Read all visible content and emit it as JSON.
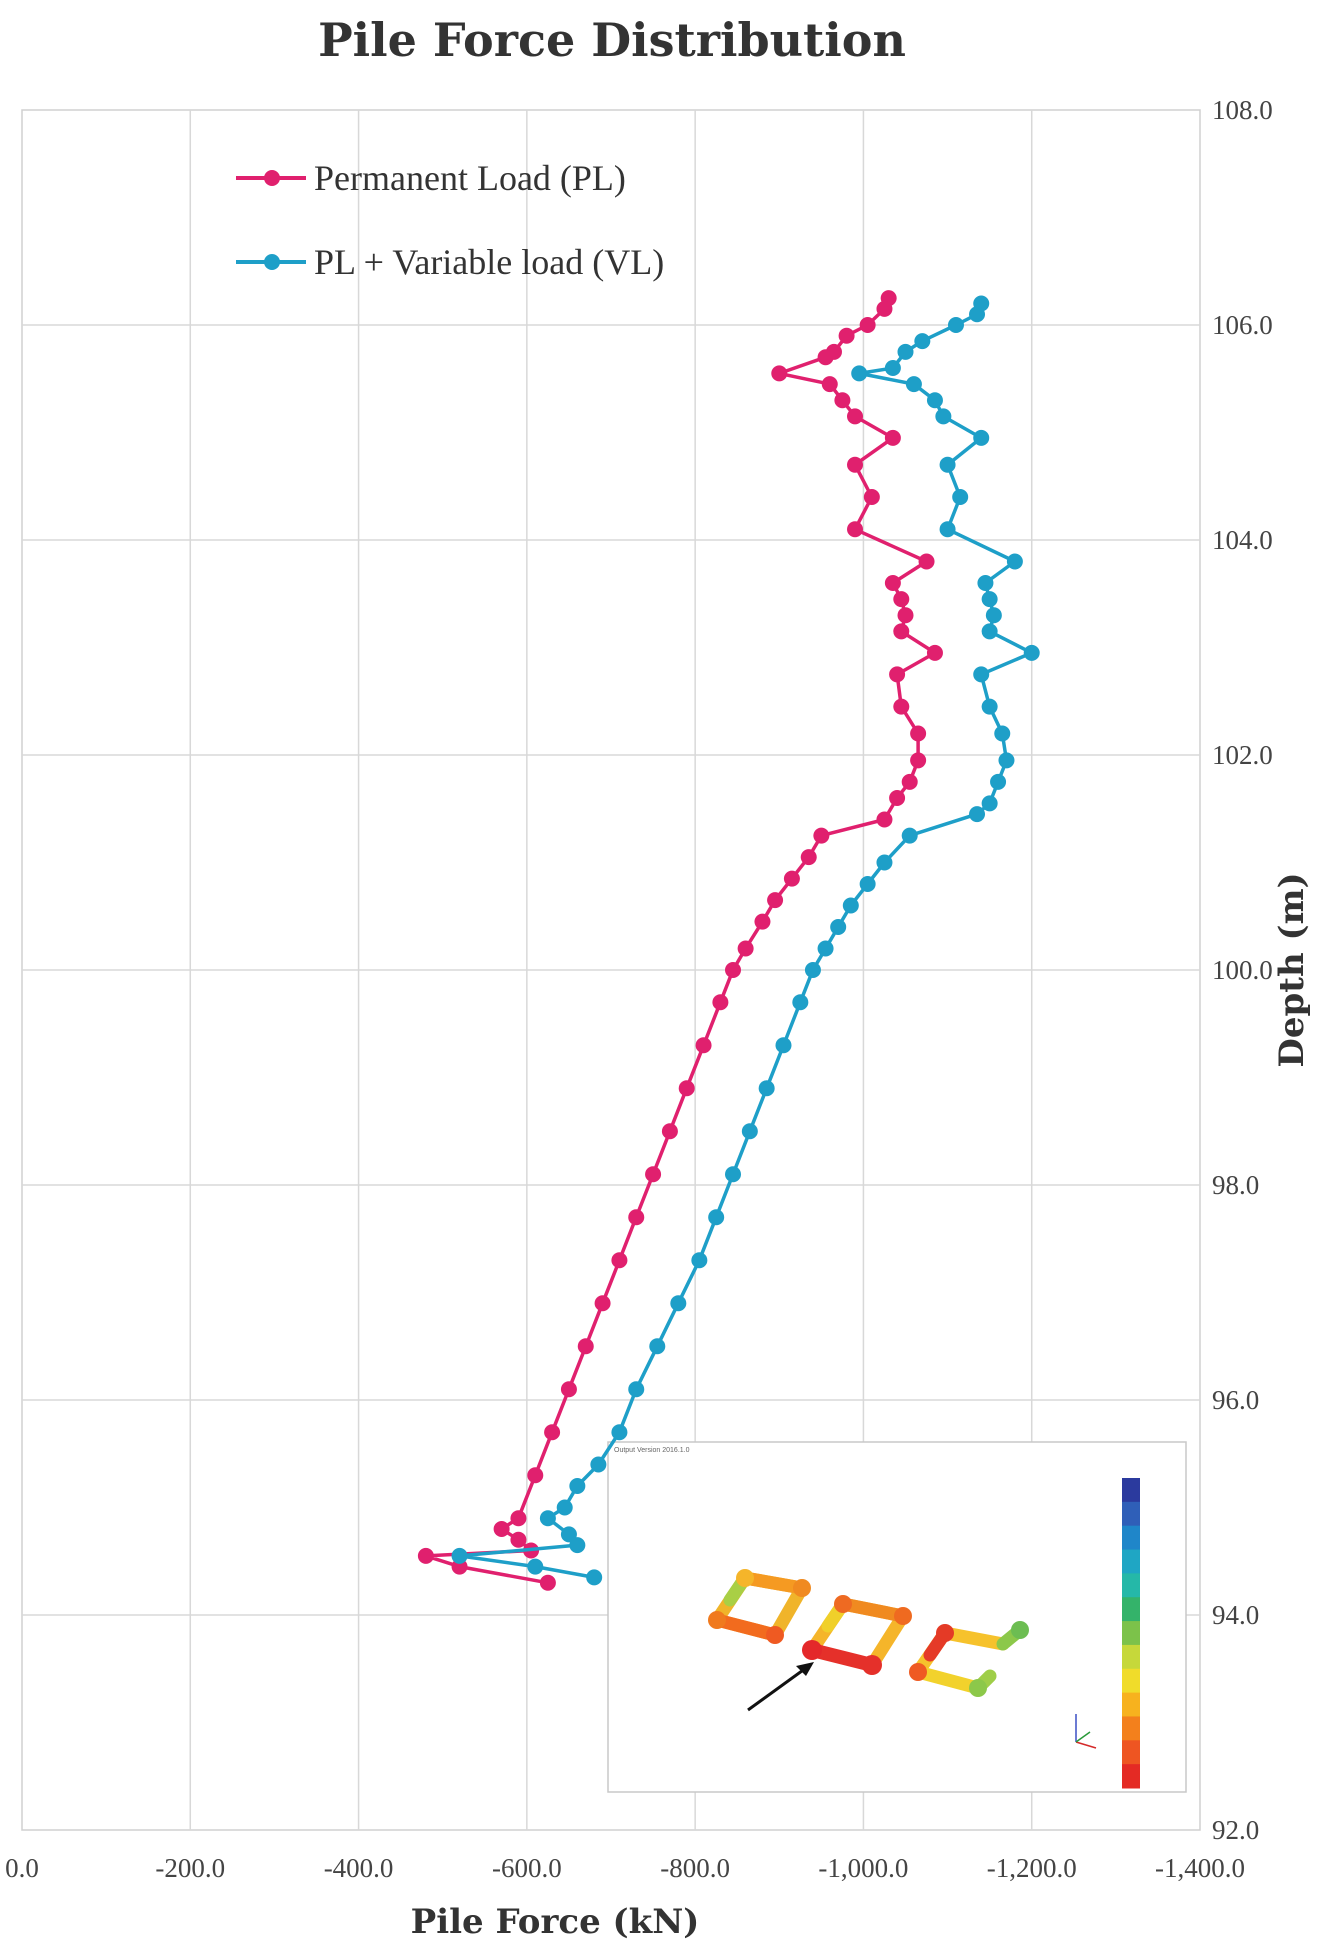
{
  "chart_data": {
    "type": "line",
    "title": "Pile Force Distribution",
    "xlabel": "Pile Force (kN)",
    "ylabel": "Depth (m)",
    "xlim": [
      0,
      -1400
    ],
    "ylim": [
      92,
      108
    ],
    "x_ticks": [
      "0.0",
      "-200.0",
      "-400.0",
      "-600.0",
      "-800.0",
      "-1,000.0",
      "-1,200.0",
      "-1,400.0"
    ],
    "y_ticks": [
      "92.0",
      "94.0",
      "96.0",
      "98.0",
      "100.0",
      "102.0",
      "104.0",
      "106.0",
      "108.0"
    ],
    "grid": true,
    "legend_position": "top-left",
    "series": [
      {
        "name": "Permanent Load (PL)",
        "color": "#e0206e",
        "points": [
          [
            -1030,
            106.25
          ],
          [
            -1025,
            106.15
          ],
          [
            -1005,
            106.0
          ],
          [
            -980,
            105.9
          ],
          [
            -965,
            105.75
          ],
          [
            -955,
            105.7
          ],
          [
            -900,
            105.55
          ],
          [
            -960,
            105.45
          ],
          [
            -975,
            105.3
          ],
          [
            -990,
            105.15
          ],
          [
            -1035,
            104.95
          ],
          [
            -990,
            104.7
          ],
          [
            -1010,
            104.4
          ],
          [
            -990,
            104.1
          ],
          [
            -1075,
            103.8
          ],
          [
            -1035,
            103.6
          ],
          [
            -1045,
            103.45
          ],
          [
            -1050,
            103.3
          ],
          [
            -1045,
            103.15
          ],
          [
            -1085,
            102.95
          ],
          [
            -1040,
            102.75
          ],
          [
            -1045,
            102.45
          ],
          [
            -1065,
            102.2
          ],
          [
            -1065,
            101.95
          ],
          [
            -1055,
            101.75
          ],
          [
            -1040,
            101.6
          ],
          [
            -1025,
            101.4
          ],
          [
            -950,
            101.25
          ],
          [
            -935,
            101.05
          ],
          [
            -915,
            100.85
          ],
          [
            -895,
            100.65
          ],
          [
            -880,
            100.45
          ],
          [
            -860,
            100.2
          ],
          [
            -845,
            100.0
          ],
          [
            -830,
            99.7
          ],
          [
            -810,
            99.3
          ],
          [
            -790,
            98.9
          ],
          [
            -770,
            98.5
          ],
          [
            -750,
            98.1
          ],
          [
            -730,
            97.7
          ],
          [
            -710,
            97.3
          ],
          [
            -690,
            96.9
          ],
          [
            -670,
            96.5
          ],
          [
            -650,
            96.1
          ],
          [
            -630,
            95.7
          ],
          [
            -610,
            95.3
          ],
          [
            -590,
            94.9
          ],
          [
            -570,
            94.8
          ],
          [
            -590,
            94.7
          ],
          [
            -605,
            94.6
          ],
          [
            -480,
            94.55
          ],
          [
            -520,
            94.45
          ],
          [
            -625,
            94.3
          ]
        ]
      },
      {
        "name": "PL + Variable load (VL)",
        "color": "#1e9fc8",
        "points": [
          [
            -1140,
            106.2
          ],
          [
            -1135,
            106.1
          ],
          [
            -1110,
            106.0
          ],
          [
            -1070,
            105.85
          ],
          [
            -1050,
            105.75
          ],
          [
            -1035,
            105.6
          ],
          [
            -995,
            105.55
          ],
          [
            -1060,
            105.45
          ],
          [
            -1085,
            105.3
          ],
          [
            -1095,
            105.15
          ],
          [
            -1140,
            104.95
          ],
          [
            -1100,
            104.7
          ],
          [
            -1115,
            104.4
          ],
          [
            -1100,
            104.1
          ],
          [
            -1180,
            103.8
          ],
          [
            -1145,
            103.6
          ],
          [
            -1150,
            103.45
          ],
          [
            -1155,
            103.3
          ],
          [
            -1150,
            103.15
          ],
          [
            -1200,
            102.95
          ],
          [
            -1140,
            102.75
          ],
          [
            -1150,
            102.45
          ],
          [
            -1165,
            102.2
          ],
          [
            -1170,
            101.95
          ],
          [
            -1160,
            101.75
          ],
          [
            -1150,
            101.55
          ],
          [
            -1135,
            101.45
          ],
          [
            -1055,
            101.25
          ],
          [
            -1025,
            101.0
          ],
          [
            -1005,
            100.8
          ],
          [
            -985,
            100.6
          ],
          [
            -970,
            100.4
          ],
          [
            -955,
            100.2
          ],
          [
            -940,
            100.0
          ],
          [
            -925,
            99.7
          ],
          [
            -905,
            99.3
          ],
          [
            -885,
            98.9
          ],
          [
            -865,
            98.5
          ],
          [
            -845,
            98.1
          ],
          [
            -825,
            97.7
          ],
          [
            -805,
            97.3
          ],
          [
            -780,
            96.9
          ],
          [
            -755,
            96.5
          ],
          [
            -730,
            96.1
          ],
          [
            -710,
            95.7
          ],
          [
            -685,
            95.4
          ],
          [
            -660,
            95.2
          ],
          [
            -645,
            95.0
          ],
          [
            -625,
            94.9
          ],
          [
            -650,
            94.75
          ],
          [
            -660,
            94.65
          ],
          [
            -520,
            94.55
          ],
          [
            -610,
            94.45
          ],
          [
            -680,
            94.35
          ]
        ]
      }
    ]
  },
  "inset": {
    "header": "Output Version 2016.1.0",
    "colorbar_colors": [
      "#2b3a9e",
      "#2f5fb8",
      "#1f86c9",
      "#1fa6c4",
      "#25b8a8",
      "#34b36a",
      "#7cc24a",
      "#c6d83a",
      "#f0dc2a",
      "#f7b21e",
      "#f3801c",
      "#ee5522",
      "#e42a24"
    ]
  }
}
